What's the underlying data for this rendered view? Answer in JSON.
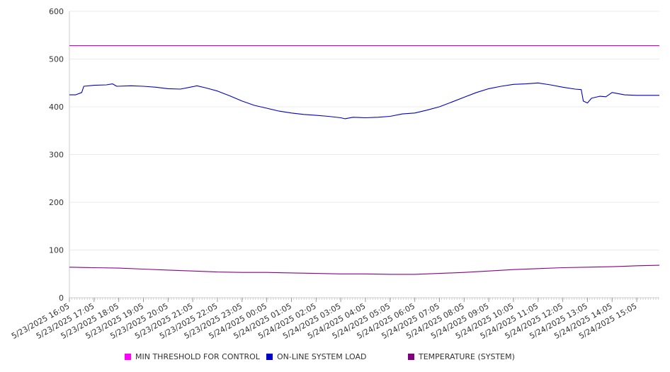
{
  "chart_data": {
    "type": "line",
    "title": "",
    "xlabel": "",
    "ylabel": "",
    "ylim": [
      0,
      600
    ],
    "y_ticks": [
      "0",
      "100",
      "200",
      "300",
      "400",
      "500",
      "600"
    ],
    "x_tick_labels": [
      "5/23/2025 16:05",
      "5/23/2025 17:05",
      "5/23/2025 18:05",
      "5/23/2025 19:05",
      "5/23/2025 20:05",
      "5/23/2025 21:05",
      "5/23/2025 22:05",
      "5/23/2025 23:05",
      "5/24/2025 00:05",
      "5/24/2025 01:05",
      "5/24/2025 02:05",
      "5/24/2025 03:05",
      "5/24/2025 04:05",
      "5/24/2025 05:05",
      "5/24/2025 06:05",
      "5/24/2025 07:05",
      "5/24/2025 08:05",
      "5/24/2025 09:05",
      "5/24/2025 10:05",
      "5/24/2025 11:05",
      "5/24/2025 12:05",
      "5/24/2025 13:05",
      "5/24/2025 14:05",
      "5/24/2025 15:05"
    ],
    "grid": true,
    "legend_position": "bottom",
    "series": [
      {
        "name": "MIN THRESHOLD FOR CONTROL",
        "color": "#cc00cc",
        "points": [
          [
            "5/23/2025 16:05",
            528
          ],
          [
            "5/24/2025 16:00",
            528
          ]
        ]
      },
      {
        "name": "ON-LINE SYSTEM LOAD",
        "color": "#0000cc",
        "points": [
          [
            "5/23/2025 16:05",
            425
          ],
          [
            "5/23/2025 16:20",
            425
          ],
          [
            "5/23/2025 16:35",
            430
          ],
          [
            "5/23/2025 16:40",
            443
          ],
          [
            "5/23/2025 17:05",
            445
          ],
          [
            "5/23/2025 17:35",
            446
          ],
          [
            "5/23/2025 17:50",
            448
          ],
          [
            "5/23/2025 18:00",
            443
          ],
          [
            "5/23/2025 18:35",
            444
          ],
          [
            "5/23/2025 19:05",
            443
          ],
          [
            "5/23/2025 19:35",
            441
          ],
          [
            "5/23/2025 20:05",
            438
          ],
          [
            "5/23/2025 20:35",
            437
          ],
          [
            "5/23/2025 21:05",
            442
          ],
          [
            "5/23/2025 21:15",
            444
          ],
          [
            "5/23/2025 21:35",
            440
          ],
          [
            "5/23/2025 22:05",
            433
          ],
          [
            "5/23/2025 22:35",
            423
          ],
          [
            "5/23/2025 23:05",
            412
          ],
          [
            "5/23/2025 23:35",
            403
          ],
          [
            "5/24/2025 00:05",
            397
          ],
          [
            "5/24/2025 00:35",
            391
          ],
          [
            "5/24/2025 01:05",
            387
          ],
          [
            "5/24/2025 01:35",
            384
          ],
          [
            "5/24/2025 02:05",
            382
          ],
          [
            "5/24/2025 02:35",
            380
          ],
          [
            "5/24/2025 03:05",
            377
          ],
          [
            "5/24/2025 03:15",
            375
          ],
          [
            "5/24/2025 03:35",
            378
          ],
          [
            "5/24/2025 04:05",
            377
          ],
          [
            "5/24/2025 04:35",
            378
          ],
          [
            "5/24/2025 05:05",
            380
          ],
          [
            "5/24/2025 05:35",
            385
          ],
          [
            "5/24/2025 06:05",
            387
          ],
          [
            "5/24/2025 06:35",
            393
          ],
          [
            "5/24/2025 07:05",
            400
          ],
          [
            "5/24/2025 07:35",
            410
          ],
          [
            "5/24/2025 08:05",
            420
          ],
          [
            "5/24/2025 08:35",
            430
          ],
          [
            "5/24/2025 09:05",
            438
          ],
          [
            "5/24/2025 09:35",
            443
          ],
          [
            "5/24/2025 10:05",
            447
          ],
          [
            "5/24/2025 10:35",
            448
          ],
          [
            "5/24/2025 11:05",
            450
          ],
          [
            "5/24/2025 11:35",
            446
          ],
          [
            "5/24/2025 12:05",
            441
          ],
          [
            "5/24/2025 12:35",
            437
          ],
          [
            "5/24/2025 12:50",
            436
          ],
          [
            "5/24/2025 12:55",
            412
          ],
          [
            "5/24/2025 13:05",
            408
          ],
          [
            "5/24/2025 13:15",
            418
          ],
          [
            "5/24/2025 13:35",
            422
          ],
          [
            "5/24/2025 13:50",
            421
          ],
          [
            "5/24/2025 14:05",
            430
          ],
          [
            "5/24/2025 14:35",
            425
          ],
          [
            "5/24/2025 15:05",
            424
          ],
          [
            "5/24/2025 15:35",
            424
          ],
          [
            "5/24/2025 16:00",
            424
          ]
        ]
      },
      {
        "name": "TEMPERATURE (SYSTEM)",
        "color": "#880088",
        "points": [
          [
            "5/23/2025 16:05",
            64
          ],
          [
            "5/23/2025 17:05",
            63
          ],
          [
            "5/23/2025 18:05",
            62
          ],
          [
            "5/23/2025 19:05",
            60
          ],
          [
            "5/23/2025 20:05",
            58
          ],
          [
            "5/23/2025 21:05",
            56
          ],
          [
            "5/23/2025 22:05",
            54
          ],
          [
            "5/23/2025 23:05",
            53
          ],
          [
            "5/24/2025 00:05",
            53
          ],
          [
            "5/24/2025 01:05",
            52
          ],
          [
            "5/24/2025 02:05",
            51
          ],
          [
            "5/24/2025 03:05",
            50
          ],
          [
            "5/24/2025 04:05",
            50
          ],
          [
            "5/24/2025 05:05",
            49
          ],
          [
            "5/24/2025 06:05",
            49
          ],
          [
            "5/24/2025 07:05",
            51
          ],
          [
            "5/24/2025 08:05",
            53
          ],
          [
            "5/24/2025 09:05",
            56
          ],
          [
            "5/24/2025 10:05",
            59
          ],
          [
            "5/24/2025 11:05",
            61
          ],
          [
            "5/24/2025 12:05",
            63
          ],
          [
            "5/24/2025 13:05",
            64
          ],
          [
            "5/24/2025 14:05",
            65
          ],
          [
            "5/24/2025 15:05",
            67
          ],
          [
            "5/24/2025 16:00",
            68
          ]
        ]
      }
    ]
  }
}
